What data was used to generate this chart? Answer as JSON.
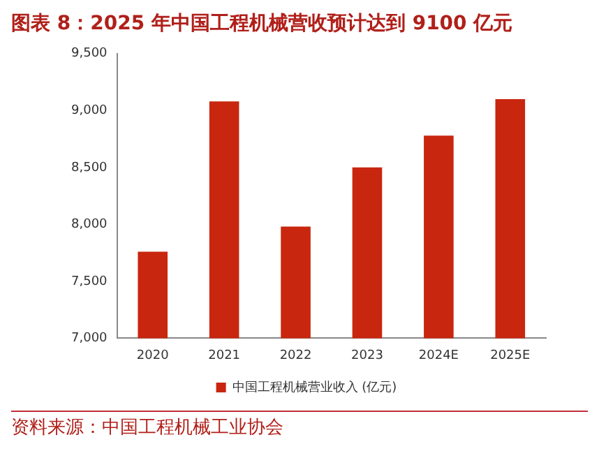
{
  "chart_data": {
    "type": "bar",
    "title": "图表 8：2025 年中国工程机械营收预计达到 9100 亿元",
    "categories": [
      "2020",
      "2021",
      "2022",
      "2023",
      "2024E",
      "2025E"
    ],
    "series": [
      {
        "name": "中国工程机械营业收入 (亿元)",
        "color": "#c8260e",
        "values": [
          7760,
          9080,
          7980,
          8500,
          8780,
          9100
        ]
      }
    ],
    "ylim": [
      7000,
      9500
    ],
    "yticks": [
      {
        "value": 7000,
        "label": "7,000"
      },
      {
        "value": 7500,
        "label": "7,500"
      },
      {
        "value": 8000,
        "label": "8,000"
      },
      {
        "value": 8500,
        "label": "8,500"
      },
      {
        "value": 9000,
        "label": "9,000"
      },
      {
        "value": 9500,
        "label": "9,500"
      }
    ],
    "grid": false,
    "legend": "bottom",
    "annotations": [
      "资料来源：中国工程机械工业协会"
    ]
  }
}
